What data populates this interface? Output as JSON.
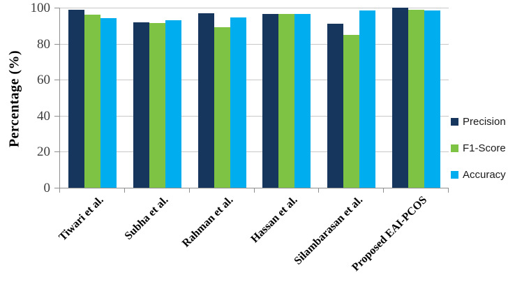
{
  "chart_data": {
    "type": "bar",
    "title": "",
    "xlabel": "",
    "ylabel": "Percentage (%)",
    "ylim": [
      0,
      100
    ],
    "yticks": [
      0,
      20,
      40,
      60,
      80,
      100
    ],
    "grid": true,
    "legend_position": "right",
    "categories": [
      "Tiwari et al.",
      "Subha et al.",
      "Rahman et al.",
      "Hassan et al.",
      "Silambarasan et al.",
      "Proposed EAI-PCOS"
    ],
    "series": [
      {
        "name": "Precision",
        "color": "#17365D",
        "values": [
          99,
          92,
          97,
          96.5,
          91,
          100
        ]
      },
      {
        "name": "F1-Score",
        "color": "#7EC344",
        "values": [
          96,
          91.5,
          89,
          96.5,
          85,
          99
        ]
      },
      {
        "name": "Accuracy",
        "color": "#00AEEF",
        "values": [
          94,
          93,
          94.5,
          96.5,
          98.5,
          98.5
        ]
      }
    ]
  },
  "colors": {
    "background": "#FFFFFF",
    "gridline": "#C8C8C8",
    "axis": "#8E8E8E",
    "tick_label": "#3D3D3D",
    "category_label": "#000000",
    "legend_text": "#1A1A1A"
  }
}
